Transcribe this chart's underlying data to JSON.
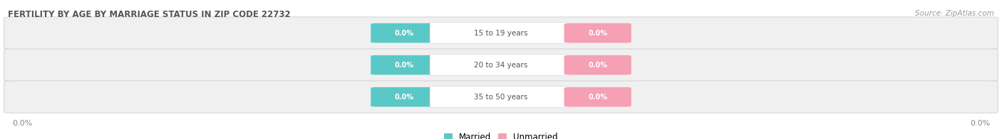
{
  "title": "FERTILITY BY AGE BY MARRIAGE STATUS IN ZIP CODE 22732",
  "source": "Source: ZipAtlas.com",
  "categories": [
    "15 to 19 years",
    "20 to 34 years",
    "35 to 50 years"
  ],
  "married_values": [
    0.0,
    0.0,
    0.0
  ],
  "unmarried_values": [
    0.0,
    0.0,
    0.0
  ],
  "married_color": "#5bc8c8",
  "unmarried_color": "#f5a0b5",
  "row_bg_color": "#f0f0f0",
  "row_border_color": "#d8d8d8",
  "title_color": "#555555",
  "source_color": "#999999",
  "label_color": "#888888",
  "background_color": "#ffffff",
  "cat_label_color": "#555555",
  "value_text_color": "#ffffff"
}
